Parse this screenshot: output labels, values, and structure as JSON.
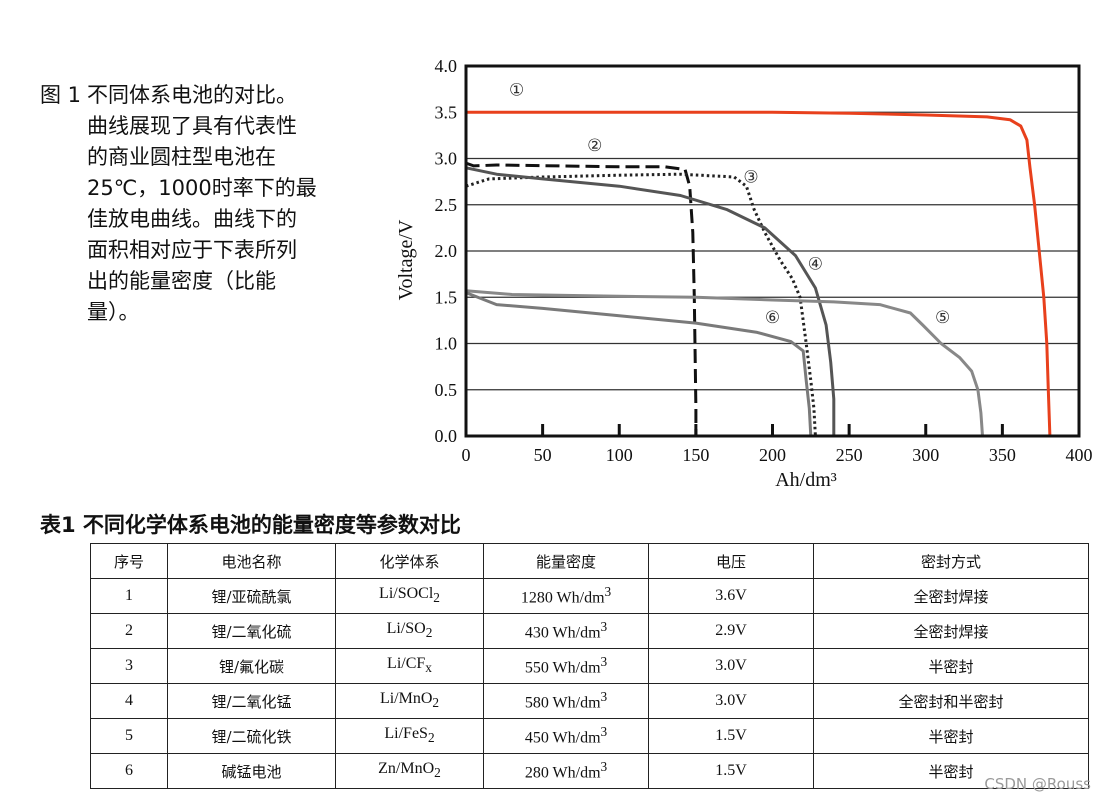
{
  "figure": {
    "caption_label": "图 1",
    "caption_lines": [
      "不同体系电池的对比。",
      "曲线展现了具有代表性",
      "的商业圆柱型电池在",
      "25℃，1000时率下的最",
      "佳放电曲线。曲线下的",
      "面积相对应于下表所列",
      "出的能量密度（比能",
      "量）。"
    ]
  },
  "chart_data": {
    "type": "line",
    "title": "",
    "xlabel": "Ah/dm³",
    "ylabel": "Voltage/V",
    "xlim": [
      0,
      400
    ],
    "ylim": [
      0,
      4.0
    ],
    "x_ticks": [
      0,
      50,
      100,
      150,
      200,
      250,
      300,
      350,
      400
    ],
    "y_ticks": [
      "0.0",
      "0.5",
      "1.0",
      "1.5",
      "2.0",
      "2.5",
      "3.0",
      "3.5",
      "4.0"
    ],
    "grid": "horizontal",
    "series": [
      {
        "marker": "①",
        "color": "#e8401c",
        "style": "solid",
        "label_at": [
          33,
          3.68
        ],
        "points": [
          [
            0,
            3.5
          ],
          [
            50,
            3.5
          ],
          [
            100,
            3.5
          ],
          [
            150,
            3.5
          ],
          [
            200,
            3.5
          ],
          [
            250,
            3.49
          ],
          [
            300,
            3.47
          ],
          [
            340,
            3.45
          ],
          [
            355,
            3.42
          ],
          [
            362,
            3.35
          ],
          [
            366,
            3.2
          ],
          [
            368,
            2.9
          ],
          [
            371,
            2.5
          ],
          [
            374,
            2.0
          ],
          [
            377,
            1.5
          ],
          [
            379,
            1.0
          ],
          [
            380,
            0.5
          ],
          [
            381,
            0.0
          ]
        ]
      },
      {
        "marker": "②",
        "color": "#111111",
        "style": "dashed",
        "label_at": [
          84,
          3.08
        ],
        "points": [
          [
            0,
            2.95
          ],
          [
            5,
            2.92
          ],
          [
            20,
            2.93
          ],
          [
            60,
            2.92
          ],
          [
            100,
            2.91
          ],
          [
            130,
            2.91
          ],
          [
            143,
            2.88
          ],
          [
            146,
            2.7
          ],
          [
            148,
            2.2
          ],
          [
            149,
            1.5
          ],
          [
            149.5,
            0.9
          ],
          [
            150,
            0.3
          ],
          [
            150,
            0.0
          ]
        ]
      },
      {
        "marker": "③",
        "color": "#222222",
        "style": "dotted",
        "label_at": [
          186,
          2.74
        ],
        "points": [
          [
            0,
            2.7
          ],
          [
            15,
            2.78
          ],
          [
            50,
            2.8
          ],
          [
            100,
            2.82
          ],
          [
            140,
            2.83
          ],
          [
            175,
            2.8
          ],
          [
            183,
            2.7
          ],
          [
            188,
            2.45
          ],
          [
            195,
            2.2
          ],
          [
            205,
            1.9
          ],
          [
            213,
            1.7
          ],
          [
            218,
            1.5
          ],
          [
            222,
            1.0
          ],
          [
            225,
            0.6
          ],
          [
            227,
            0.3
          ],
          [
            228,
            0.0
          ]
        ]
      },
      {
        "marker": "④",
        "color": "#555555",
        "style": "solid",
        "label_at": [
          228,
          1.8
        ],
        "points": [
          [
            0,
            2.9
          ],
          [
            20,
            2.83
          ],
          [
            50,
            2.78
          ],
          [
            100,
            2.7
          ],
          [
            140,
            2.6
          ],
          [
            170,
            2.45
          ],
          [
            195,
            2.25
          ],
          [
            215,
            1.95
          ],
          [
            228,
            1.6
          ],
          [
            235,
            1.2
          ],
          [
            238,
            0.8
          ],
          [
            240,
            0.4
          ],
          [
            240,
            0.0
          ]
        ]
      },
      {
        "marker": "⑤",
        "color": "#888888",
        "style": "solid",
        "label_at": [
          311,
          1.22
        ],
        "points": [
          [
            0,
            1.57
          ],
          [
            30,
            1.53
          ],
          [
            100,
            1.51
          ],
          [
            150,
            1.5
          ],
          [
            200,
            1.47
          ],
          [
            240,
            1.45
          ],
          [
            270,
            1.42
          ],
          [
            290,
            1.33
          ],
          [
            298,
            1.2
          ],
          [
            310,
            1.0
          ],
          [
            322,
            0.85
          ],
          [
            330,
            0.7
          ],
          [
            334,
            0.5
          ],
          [
            336,
            0.25
          ],
          [
            337,
            0.0
          ]
        ]
      },
      {
        "marker": "⑥",
        "color": "#7a7a7a",
        "style": "solid",
        "label_at": [
          200,
          1.22
        ],
        "points": [
          [
            0,
            1.55
          ],
          [
            20,
            1.42
          ],
          [
            50,
            1.38
          ],
          [
            100,
            1.3
          ],
          [
            150,
            1.22
          ],
          [
            190,
            1.12
          ],
          [
            212,
            1.02
          ],
          [
            220,
            0.92
          ],
          [
            222,
            0.6
          ],
          [
            224,
            0.3
          ],
          [
            225,
            0.0
          ]
        ]
      }
    ]
  },
  "table": {
    "title": "表1  不同化学体系电池的能量密度等参数对比",
    "headers": [
      "序号",
      "电池名称",
      "化学体系",
      "能量密度",
      "电压",
      "密封方式"
    ],
    "rows": [
      {
        "no": "1",
        "name": "锂/亚硫酰氯",
        "chem_base": "Li/SOCl",
        "chem_sub": "2",
        "density_value": "1280 Wh/dm",
        "density_sup": "3",
        "voltage": "3.6V",
        "seal": "全密封焊接"
      },
      {
        "no": "2",
        "name": "锂/二氧化硫",
        "chem_base": "Li/SO",
        "chem_sub": "2",
        "density_value": "430 Wh/dm",
        "density_sup": "3",
        "voltage": "2.9V",
        "seal": "全密封焊接"
      },
      {
        "no": "3",
        "name": "锂/氟化碳",
        "chem_base": "Li/CF",
        "chem_sub": "x",
        "density_value": "550 Wh/dm",
        "density_sup": "3",
        "voltage": "3.0V",
        "seal": "半密封"
      },
      {
        "no": "4",
        "name": "锂/二氧化锰",
        "chem_base": "Li/MnO",
        "chem_sub": "2",
        "density_value": "580 Wh/dm",
        "density_sup": "3",
        "voltage": "3.0V",
        "seal": "全密封和半密封"
      },
      {
        "no": "5",
        "name": "锂/二硫化铁",
        "chem_base": "Li/FeS",
        "chem_sub": "2",
        "density_value": "450 Wh/dm",
        "density_sup": "3",
        "voltage": "1.5V",
        "seal": "半密封"
      },
      {
        "no": "6",
        "name": "碱锰电池",
        "chem_base": "Zn/MnO",
        "chem_sub": "2",
        "density_value": "280 Wh/dm",
        "density_sup": "3",
        "voltage": "1.5V",
        "seal": "半密封"
      }
    ]
  },
  "watermark": "CSDN @Rouss"
}
